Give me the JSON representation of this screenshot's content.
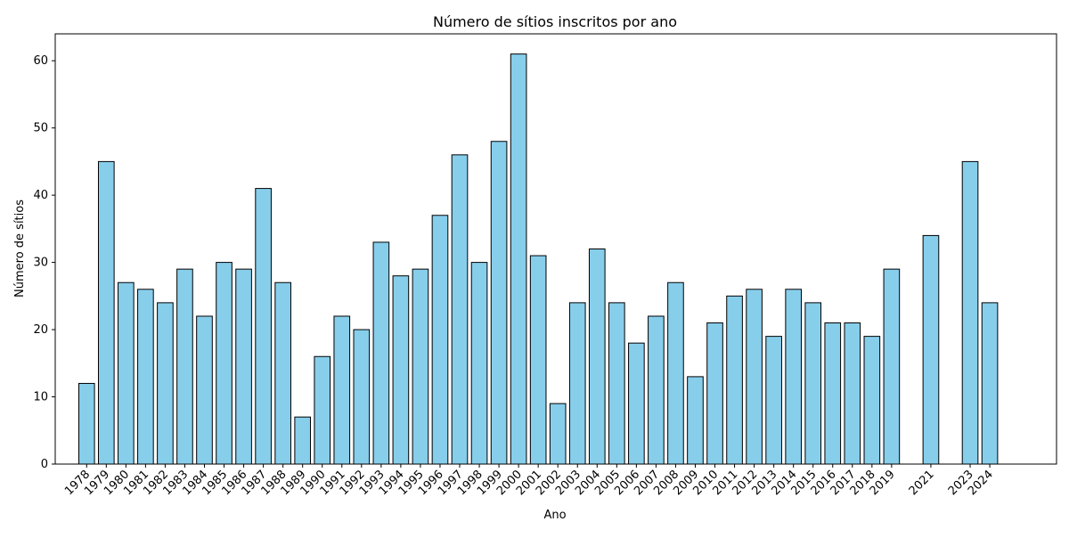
{
  "chart_data": {
    "type": "bar",
    "title": "Número de sítios inscritos por ano",
    "xlabel": "Ano",
    "ylabel": "Número de sítios",
    "ylim": [
      0,
      64
    ],
    "yticks": [
      0,
      10,
      20,
      30,
      40,
      50,
      60
    ],
    "xlim": [
      1976.4,
      2027.4
    ],
    "grid": false,
    "bar_color": "#87CEEB",
    "edge_color": "#000000",
    "x": [
      1978,
      1979,
      1980,
      1981,
      1982,
      1983,
      1984,
      1985,
      1986,
      1987,
      1988,
      1989,
      1990,
      1991,
      1992,
      1993,
      1994,
      1995,
      1996,
      1997,
      1998,
      1999,
      2000,
      2001,
      2002,
      2003,
      2004,
      2005,
      2006,
      2007,
      2008,
      2009,
      2010,
      2011,
      2012,
      2013,
      2014,
      2015,
      2016,
      2017,
      2018,
      2019,
      2021,
      2023,
      2024
    ],
    "values": [
      12,
      45,
      27,
      26,
      24,
      29,
      22,
      30,
      29,
      41,
      27,
      7,
      16,
      22,
      20,
      33,
      28,
      29,
      37,
      46,
      30,
      48,
      61,
      31,
      9,
      24,
      32,
      24,
      18,
      22,
      27,
      13,
      21,
      25,
      26,
      19,
      26,
      24,
      21,
      21,
      19,
      29,
      34,
      45,
      24
    ]
  }
}
